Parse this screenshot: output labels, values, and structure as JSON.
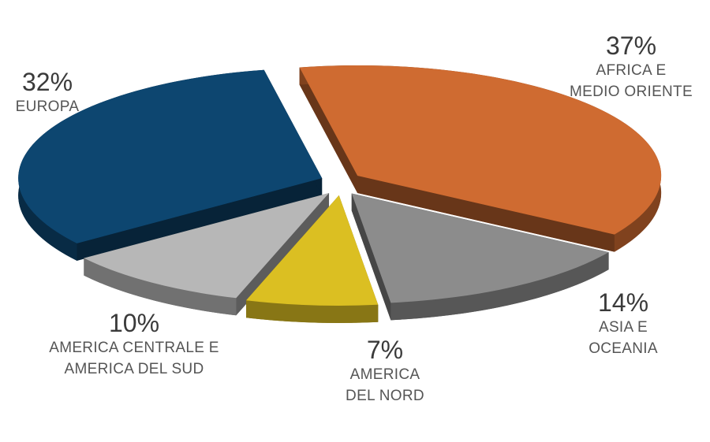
{
  "chart_data": {
    "type": "pie",
    "categories": [
      "AFRICA E\nMEDIO ORIENTE",
      "ASIA E\nOCEANIA",
      "AMERICA\nDEL NORD",
      "AMERICA CENTRALE E\nAMERICA DEL SUD",
      "EUROPA"
    ],
    "values": [
      37,
      14,
      7,
      10,
      32
    ],
    "value_labels": [
      "37%",
      "14%",
      "7%",
      "10%",
      "32%"
    ],
    "colors": [
      "#cf6b31",
      "#8c8c8c",
      "#dbbf22",
      "#b7b7b7",
      "#0d4670"
    ]
  }
}
